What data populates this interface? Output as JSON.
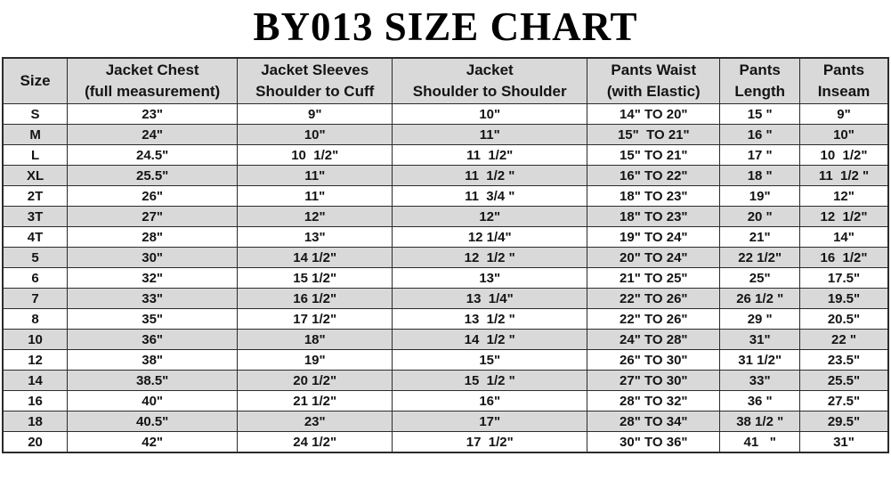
{
  "title": "BY013 SIZE CHART",
  "colors": {
    "background": "#ffffff",
    "header_bg": "#d9d9d9",
    "row_shaded_bg": "#d9d9d9",
    "row_plain_bg": "#ffffff",
    "border": "#2b2b2b",
    "text": "#141414"
  },
  "chart_data": {
    "type": "table",
    "title": "BY013 SIZE CHART",
    "columns": [
      {
        "lines": [
          "Size"
        ]
      },
      {
        "lines": [
          "Jacket Chest",
          "(full measurement)"
        ]
      },
      {
        "lines": [
          "Jacket Sleeves",
          "Shoulder to Cuff"
        ]
      },
      {
        "lines": [
          "Jacket",
          "Shoulder to Shoulder"
        ]
      },
      {
        "lines": [
          "Pants Waist",
          "(with Elastic)"
        ]
      },
      {
        "lines": [
          "Pants",
          "Length"
        ]
      },
      {
        "lines": [
          "Pants",
          "Inseam"
        ]
      }
    ],
    "rows": [
      [
        "S",
        "23\"",
        "9\"",
        "10\"",
        "14\" TO 20\"",
        "15 \"",
        "9\""
      ],
      [
        "M",
        "24\"",
        "10\"",
        "11\"",
        "15\"  TO 21\"",
        "16 \"",
        "10\""
      ],
      [
        "L",
        "24.5\"",
        "10  1/2\"",
        "11  1/2\"",
        "15\" TO 21\"",
        "17 \"",
        "10  1/2\""
      ],
      [
        "XL",
        "25.5\"",
        "11\"",
        "11  1/2 \"",
        "16\" TO 22\"",
        "18 \"",
        "11  1/2 \""
      ],
      [
        "2T",
        "26\"",
        "11\"",
        "11  3/4 \"",
        "18\" TO 23\"",
        "19\"",
        "12\""
      ],
      [
        "3T",
        "27\"",
        "12\"",
        "12\"",
        "18\" TO 23\"",
        "20 \"",
        "12  1/2\""
      ],
      [
        "4T",
        "28\"",
        "13\"",
        "12 1/4\"",
        "19\" TO 24\"",
        "21\"",
        "14\""
      ],
      [
        "5",
        "30\"",
        "14 1/2\"",
        "12  1/2 \"",
        "20\" TO 24\"",
        "22 1/2\"",
        "16  1/2\""
      ],
      [
        "6",
        "32\"",
        "15 1/2\"",
        "13\"",
        "21\" TO 25\"",
        "25\"",
        "17.5\""
      ],
      [
        "7",
        "33\"",
        "16 1/2\"",
        "13  1/4\"",
        "22\" TO 26\"",
        "26 1/2 \"",
        "19.5\""
      ],
      [
        "8",
        "35\"",
        "17 1/2\"",
        "13  1/2 \"",
        "22\" TO 26\"",
        "29 \"",
        "20.5\""
      ],
      [
        "10",
        "36\"",
        "18\"",
        "14  1/2 \"",
        "24\" TO 28\"",
        "31\"",
        "22 \""
      ],
      [
        "12",
        "38\"",
        "19\"",
        "15\"",
        "26\" TO 30\"",
        "31 1/2\"",
        "23.5\""
      ],
      [
        "14",
        "38.5\"",
        "20 1/2\"",
        "15  1/2 \"",
        "27\" TO 30\"",
        "33\"",
        "25.5\""
      ],
      [
        "16",
        "40\"",
        "21 1/2\"",
        "16\"",
        "28\" TO 32\"",
        "36 \"",
        "27.5\""
      ],
      [
        "18",
        "40.5\"",
        "23\"",
        "17\"",
        "28\" TO 34\"",
        "38 1/2 \"",
        "29.5\""
      ],
      [
        "20",
        "42\"",
        "24 1/2\"",
        "17  1/2\"",
        "30\" TO 36\"",
        "41   \"",
        "31\""
      ]
    ],
    "layout": {
      "row_striping": "alternate rows shaded starting with second row (M)",
      "column_width_percents": [
        7.3,
        19.2,
        17.5,
        22.0,
        15.0,
        9.0,
        10.0
      ]
    }
  }
}
